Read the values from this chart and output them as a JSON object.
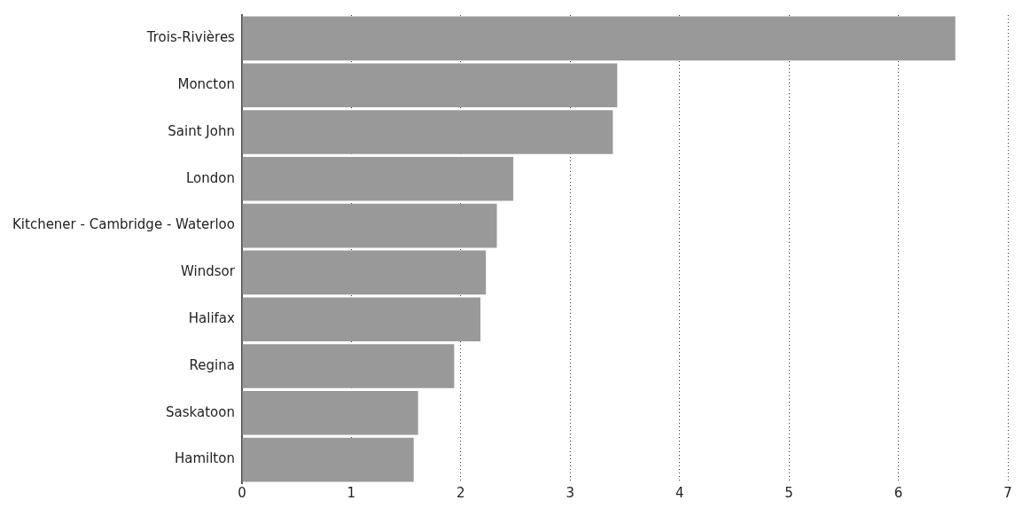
{
  "chart_data": {
    "type": "bar",
    "orientation": "horizontal",
    "categories": [
      "Trois-Rivières",
      "Moncton",
      "Saint John",
      "London",
      "Kitchener - Cambridge - Waterloo",
      "Windsor",
      "Halifax",
      "Regina",
      "Saskatoon",
      "Hamilton"
    ],
    "values": [
      6.52,
      3.43,
      3.39,
      2.48,
      2.33,
      2.23,
      2.18,
      1.94,
      1.61,
      1.57
    ],
    "color": "#999999",
    "xlim": [
      0,
      7
    ],
    "xticks": [
      0,
      1,
      2,
      3,
      4,
      5,
      6,
      7
    ],
    "grid": "x",
    "legend": false
  }
}
